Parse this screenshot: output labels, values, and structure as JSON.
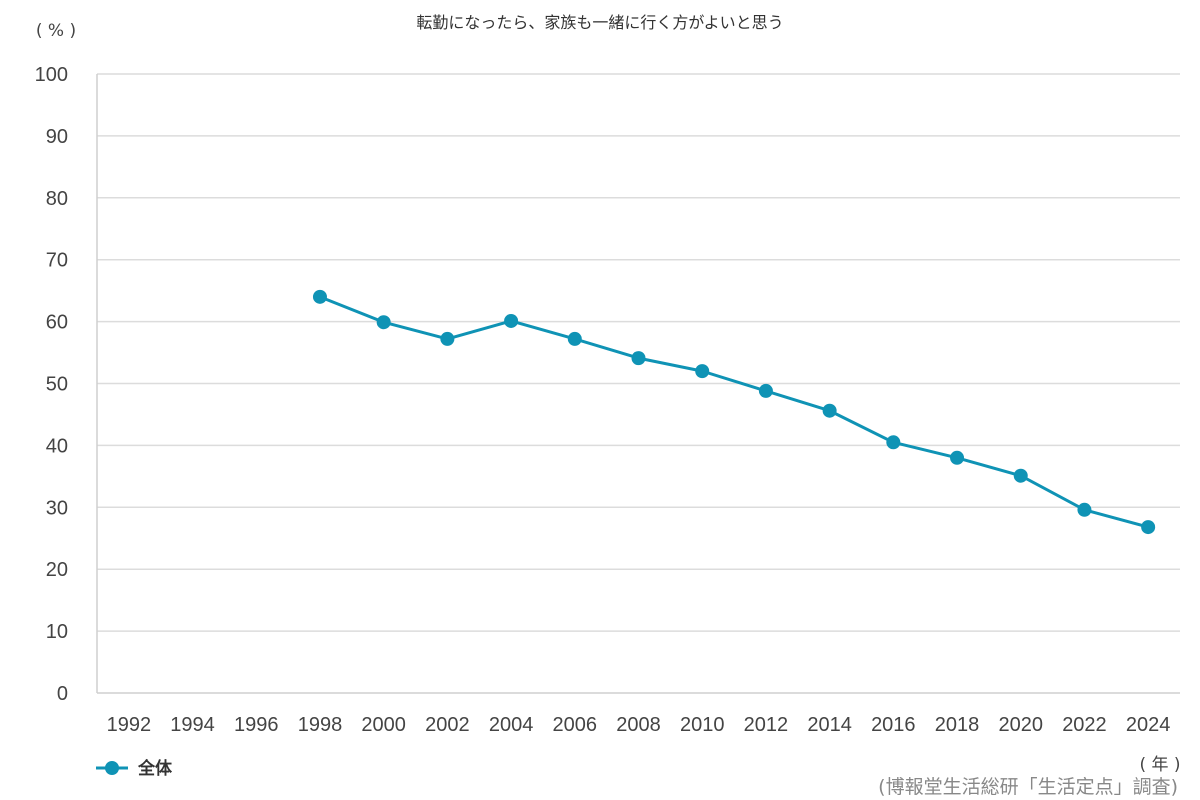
{
  "chart_data": {
    "type": "line",
    "title": "転勤になったら、家族も一緒に行く方がよいと思う",
    "ylabel": "( % )",
    "xlabel": "( 年 )",
    "source": "(博報堂生活総研「生活定点」調査)",
    "ylim": [
      0,
      100
    ],
    "yticks": [
      0,
      10,
      20,
      30,
      40,
      50,
      60,
      70,
      80,
      90,
      100
    ],
    "categories": [
      "1992",
      "1994",
      "1996",
      "1998",
      "2000",
      "2002",
      "2004",
      "2006",
      "2008",
      "2010",
      "2012",
      "2014",
      "2016",
      "2018",
      "2020",
      "2022",
      "2024"
    ],
    "grid": true,
    "legend_position": "bottom-left",
    "series": [
      {
        "name": "全体",
        "color": "#0f93b5",
        "values": [
          null,
          null,
          null,
          64.0,
          59.9,
          57.2,
          60.1,
          57.2,
          54.1,
          52.0,
          48.8,
          45.6,
          40.5,
          38.0,
          35.1,
          29.6,
          26.8
        ]
      }
    ]
  }
}
